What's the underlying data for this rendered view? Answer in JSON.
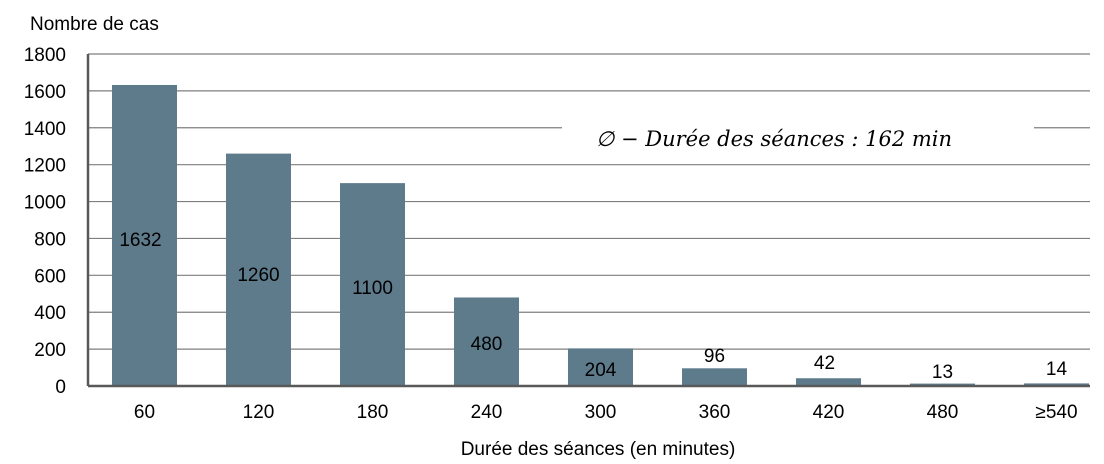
{
  "chart_data": {
    "type": "bar",
    "categories": [
      "60",
      "120",
      "180",
      "240",
      "300",
      "360",
      "420",
      "480",
      "≥540"
    ],
    "values": [
      1632,
      1260,
      1100,
      480,
      204,
      96,
      42,
      13,
      14
    ],
    "data_labels": [
      "1632",
      "1260",
      "1100",
      "480",
      "204",
      "96",
      "42",
      "13",
      "14"
    ],
    "xlabel": "Durée des séances (en minutes)",
    "ylabel": "Nombre de cas",
    "ylim": [
      0,
      1800
    ],
    "yticks": [
      0,
      200,
      400,
      600,
      800,
      1000,
      1200,
      1400,
      1600,
      1800
    ],
    "ytick_labels": [
      "0",
      "200",
      "400",
      "600",
      "800",
      "1000",
      "1200",
      "1400",
      "1600",
      "1800"
    ],
    "grid": true,
    "annotation": "∅ − Durée des séances : 162 min",
    "colors": {
      "bar": "#5e7b8c",
      "grid": "#7f7f7f",
      "axis": "#595959"
    }
  }
}
